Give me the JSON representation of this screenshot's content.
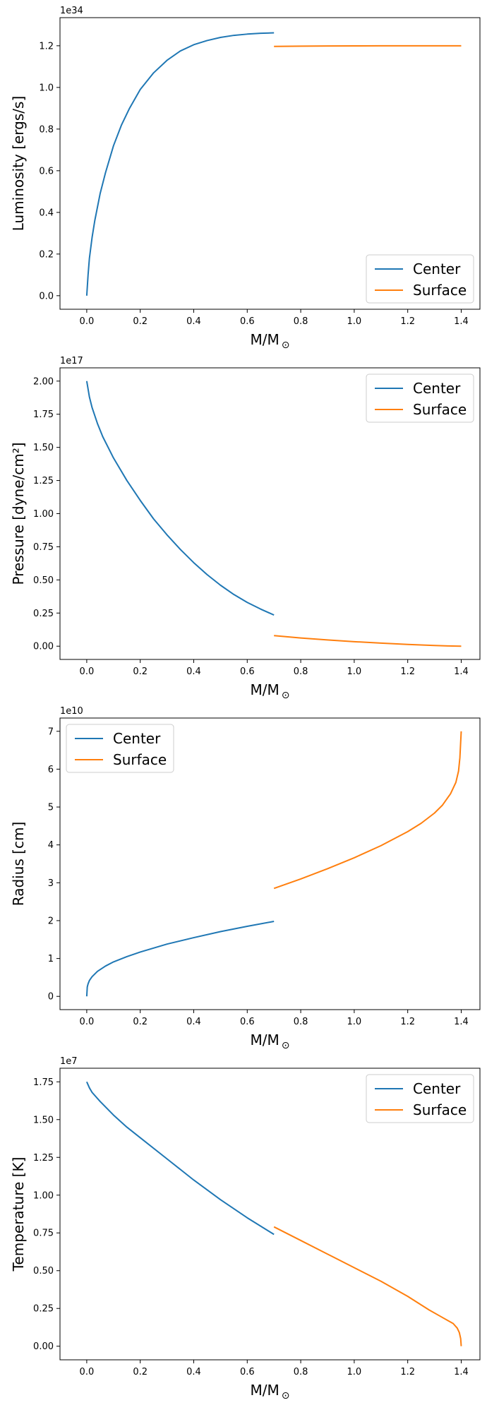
{
  "colors": {
    "center": "#1f77b4",
    "surface": "#ff7f0e"
  },
  "chart_data": [
    {
      "type": "line",
      "xlabel": "M/M",
      "xlabel_sub": "⊙",
      "ylabel": "Luminosity [ergs/s]",
      "y_exponent": "1e34",
      "xlim": [
        -0.1,
        1.47
      ],
      "ylim": [
        -0.065,
        1.335
      ],
      "x_ticks": [
        0.0,
        0.2,
        0.4,
        0.6,
        0.8,
        1.0,
        1.2,
        1.4
      ],
      "x_tick_labels": [
        "0.0",
        "0.2",
        "0.4",
        "0.6",
        "0.8",
        "1.0",
        "1.2",
        "1.4"
      ],
      "y_ticks": [
        0.0,
        0.2,
        0.4,
        0.6,
        0.8,
        1.0,
        1.2
      ],
      "y_tick_labels": [
        "0.0",
        "0.2",
        "0.4",
        "0.6",
        "0.8",
        "1.0",
        "1.2"
      ],
      "legend": "lower right",
      "series": [
        {
          "name": "Center",
          "x": [
            0.0,
            0.005,
            0.01,
            0.02,
            0.03,
            0.05,
            0.07,
            0.1,
            0.13,
            0.16,
            0.2,
            0.25,
            0.3,
            0.35,
            0.4,
            0.45,
            0.5,
            0.55,
            0.6,
            0.65,
            0.7
          ],
          "y": [
            0.0,
            0.1,
            0.18,
            0.28,
            0.36,
            0.49,
            0.59,
            0.72,
            0.82,
            0.9,
            0.99,
            1.07,
            1.13,
            1.175,
            1.205,
            1.225,
            1.24,
            1.25,
            1.256,
            1.26,
            1.262
          ]
        },
        {
          "name": "Surface",
          "x": [
            0.7,
            0.8,
            0.9,
            1.0,
            1.1,
            1.2,
            1.3,
            1.4
          ],
          "y": [
            1.197,
            1.198,
            1.199,
            1.1995,
            1.2,
            1.2,
            1.2,
            1.2
          ]
        }
      ]
    },
    {
      "type": "line",
      "xlabel": "M/M",
      "xlabel_sub": "⊙",
      "ylabel": "Pressure [dyne/cm²]",
      "y_exponent": "1e17",
      "xlim": [
        -0.1,
        1.47
      ],
      "ylim": [
        -0.1,
        2.1
      ],
      "x_ticks": [
        0.0,
        0.2,
        0.4,
        0.6,
        0.8,
        1.0,
        1.2,
        1.4
      ],
      "x_tick_labels": [
        "0.0",
        "0.2",
        "0.4",
        "0.6",
        "0.8",
        "1.0",
        "1.2",
        "1.4"
      ],
      "y_ticks": [
        0.0,
        0.25,
        0.5,
        0.75,
        1.0,
        1.25,
        1.5,
        1.75,
        2.0
      ],
      "y_tick_labels": [
        "0.00",
        "0.25",
        "0.50",
        "0.75",
        "1.00",
        "1.25",
        "1.50",
        "1.75",
        "2.00"
      ],
      "legend": "upper right",
      "series": [
        {
          "name": "Center",
          "x": [
            0.0,
            0.01,
            0.02,
            0.04,
            0.06,
            0.1,
            0.15,
            0.2,
            0.25,
            0.3,
            0.35,
            0.4,
            0.45,
            0.5,
            0.55,
            0.6,
            0.65,
            0.7
          ],
          "y": [
            2.0,
            1.88,
            1.8,
            1.68,
            1.58,
            1.42,
            1.25,
            1.1,
            0.96,
            0.84,
            0.73,
            0.63,
            0.54,
            0.46,
            0.39,
            0.33,
            0.28,
            0.235
          ]
        },
        {
          "name": "Surface",
          "x": [
            0.7,
            0.8,
            0.9,
            1.0,
            1.1,
            1.2,
            1.3,
            1.35,
            1.4
          ],
          "y": [
            0.08,
            0.062,
            0.047,
            0.034,
            0.023,
            0.013,
            0.005,
            0.002,
            0.0
          ]
        }
      ]
    },
    {
      "type": "line",
      "xlabel": "M/M",
      "xlabel_sub": "⊙",
      "ylabel": "Radius [cm]",
      "y_exponent": "1e10",
      "xlim": [
        -0.1,
        1.47
      ],
      "ylim": [
        -0.35,
        7.35
      ],
      "x_ticks": [
        0.0,
        0.2,
        0.4,
        0.6,
        0.8,
        1.0,
        1.2,
        1.4
      ],
      "x_tick_labels": [
        "0.0",
        "0.2",
        "0.4",
        "0.6",
        "0.8",
        "1.0",
        "1.2",
        "1.4"
      ],
      "y_ticks": [
        0,
        1,
        2,
        3,
        4,
        5,
        6,
        7
      ],
      "y_tick_labels": [
        "0",
        "1",
        "2",
        "3",
        "4",
        "5",
        "6",
        "7"
      ],
      "legend": "upper left",
      "series": [
        {
          "name": "Center",
          "x": [
            0.0,
            0.002,
            0.005,
            0.01,
            0.02,
            0.04,
            0.07,
            0.1,
            0.15,
            0.2,
            0.3,
            0.4,
            0.5,
            0.6,
            0.7
          ],
          "y": [
            0.0,
            0.25,
            0.33,
            0.42,
            0.52,
            0.66,
            0.8,
            0.91,
            1.05,
            1.17,
            1.38,
            1.55,
            1.71,
            1.85,
            1.98
          ]
        },
        {
          "name": "Surface",
          "x": [
            0.7,
            0.8,
            0.9,
            1.0,
            1.1,
            1.2,
            1.25,
            1.3,
            1.33,
            1.36,
            1.38,
            1.39,
            1.395,
            1.4
          ],
          "y": [
            2.85,
            3.1,
            3.37,
            3.66,
            3.98,
            4.35,
            4.57,
            4.84,
            5.05,
            5.35,
            5.65,
            5.95,
            6.3,
            7.0
          ]
        }
      ]
    },
    {
      "type": "line",
      "xlabel": "M/M",
      "xlabel_sub": "⊙",
      "ylabel": "Temperature [K]",
      "y_exponent": "1e7",
      "xlim": [
        -0.1,
        1.47
      ],
      "ylim": [
        -0.09,
        1.84
      ],
      "x_ticks": [
        0.0,
        0.2,
        0.4,
        0.6,
        0.8,
        1.0,
        1.2,
        1.4
      ],
      "x_tick_labels": [
        "0.0",
        "0.2",
        "0.4",
        "0.6",
        "0.8",
        "1.0",
        "1.2",
        "1.4"
      ],
      "y_ticks": [
        0.0,
        0.25,
        0.5,
        0.75,
        1.0,
        1.25,
        1.5,
        1.75
      ],
      "y_tick_labels": [
        "0.00",
        "0.25",
        "0.50",
        "0.75",
        "1.00",
        "1.25",
        "1.50",
        "1.75"
      ],
      "legend": "upper right",
      "series": [
        {
          "name": "Center",
          "x": [
            0.0,
            0.01,
            0.02,
            0.05,
            0.1,
            0.15,
            0.2,
            0.3,
            0.4,
            0.5,
            0.6,
            0.7
          ],
          "y": [
            1.75,
            1.71,
            1.68,
            1.62,
            1.53,
            1.45,
            1.38,
            1.24,
            1.1,
            0.97,
            0.85,
            0.74
          ]
        },
        {
          "name": "Surface",
          "x": [
            0.7,
            0.8,
            0.9,
            1.0,
            1.1,
            1.2,
            1.28,
            1.32,
            1.35,
            1.37,
            1.385,
            1.393,
            1.398,
            1.4
          ],
          "y": [
            0.79,
            0.7,
            0.61,
            0.52,
            0.43,
            0.33,
            0.24,
            0.2,
            0.17,
            0.15,
            0.12,
            0.09,
            0.05,
            0.0
          ]
        }
      ]
    }
  ]
}
